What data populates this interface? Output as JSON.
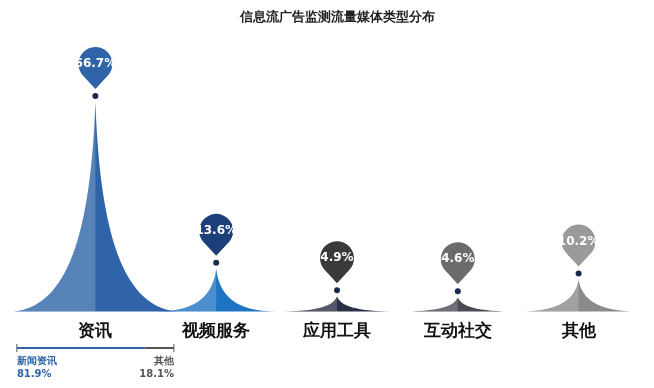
{
  "chart_data": {
    "type": "bar",
    "title": "信息流广告监测流量媒体类型分布",
    "categories": [
      "资讯",
      "视频服务",
      "应用工具",
      "互动社交",
      "其他"
    ],
    "values": [
      66.7,
      13.6,
      4.9,
      4.6,
      10.2
    ],
    "value_labels": [
      "66.7%",
      "13.6%",
      "4.9%",
      "4.6%",
      "10.2%"
    ],
    "colors": [
      "#2f64a8",
      "#1e74c2",
      "#2b2f45",
      "#4a4a55",
      "#8a8a8a"
    ],
    "data_labels": true,
    "grid": false,
    "tick_labels": "x",
    "breakdown": {
      "category": "资讯",
      "labels": [
        "新闻资讯",
        "其他"
      ],
      "values": [
        81.9,
        18.1
      ],
      "value_labels": [
        "81.9%",
        "18.1%"
      ],
      "colors": [
        "#2f64a8",
        "#555555"
      ]
    }
  }
}
